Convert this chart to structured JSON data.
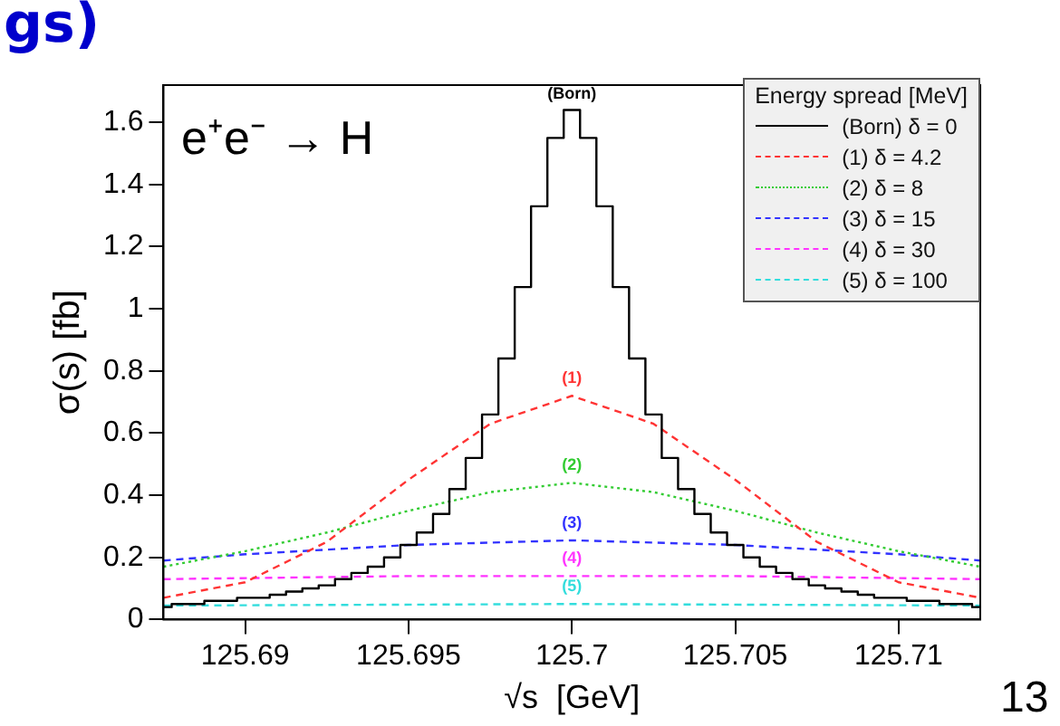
{
  "chart_data": {
    "type": "line",
    "xlabel": "√s  [GeV]",
    "ylabel": "σ(s) [fb]",
    "legend_title": "Energy spread [MeV]",
    "legend": "top right",
    "grid": false,
    "marker": "none",
    "xlim": [
      125.6875,
      125.7125
    ],
    "xticks": [
      125.69,
      125.695,
      125.7,
      125.705,
      125.71
    ],
    "ylim": [
      0,
      1.72
    ],
    "yticks": [
      0,
      0.2,
      0.4,
      0.6,
      0.8,
      1,
      1.2,
      1.4,
      1.6
    ],
    "series": [
      {
        "name": "(Born) δ = 0",
        "type": "step",
        "color": "#000000",
        "line_style": "solid",
        "x": [
          125.6875,
          125.688,
          125.6885,
          125.689,
          125.6895,
          125.69,
          125.6905,
          125.691,
          125.6915,
          125.692,
          125.6925,
          125.693,
          125.6935,
          125.694,
          125.6945,
          125.695,
          125.6955,
          125.696,
          125.6965,
          125.697,
          125.6975,
          125.698,
          125.6985,
          125.699,
          125.6995,
          125.7,
          125.7005,
          125.701,
          125.7015,
          125.702,
          125.7025,
          125.703,
          125.7035,
          125.704,
          125.7045,
          125.705,
          125.7055,
          125.706,
          125.7065,
          125.707,
          125.7075,
          125.708,
          125.7085,
          125.709,
          125.7095,
          125.71,
          125.7105,
          125.711,
          125.7115,
          125.712,
          125.7125
        ],
        "values": [
          0.04,
          0.05,
          0.05,
          0.06,
          0.06,
          0.07,
          0.07,
          0.08,
          0.09,
          0.1,
          0.11,
          0.13,
          0.15,
          0.17,
          0.2,
          0.24,
          0.28,
          0.34,
          0.42,
          0.52,
          0.66,
          0.84,
          1.07,
          1.33,
          1.55,
          1.64,
          1.55,
          1.33,
          1.07,
          0.84,
          0.66,
          0.52,
          0.42,
          0.34,
          0.28,
          0.24,
          0.2,
          0.17,
          0.15,
          0.13,
          0.11,
          0.1,
          0.09,
          0.08,
          0.07,
          0.07,
          0.06,
          0.06,
          0.05,
          0.05,
          0.04
        ]
      },
      {
        "name": "(1) δ = 4.2",
        "color": "#ff3333",
        "line_style": "dashed",
        "x": [
          125.6875,
          125.69,
          125.6925,
          125.695,
          125.6975,
          125.7,
          125.7025,
          125.705,
          125.7075,
          125.71,
          125.7125
        ],
        "values": [
          0.07,
          0.12,
          0.25,
          0.45,
          0.63,
          0.72,
          0.63,
          0.45,
          0.25,
          0.12,
          0.07
        ]
      },
      {
        "name": "(2) δ = 8",
        "color": "#33cc33",
        "line_style": "dotted",
        "x": [
          125.6875,
          125.69,
          125.6925,
          125.695,
          125.6975,
          125.7,
          125.7025,
          125.705,
          125.7075,
          125.71,
          125.7125
        ],
        "values": [
          0.17,
          0.22,
          0.28,
          0.35,
          0.41,
          0.44,
          0.41,
          0.35,
          0.28,
          0.22,
          0.17
        ]
      },
      {
        "name": "(3) δ = 15",
        "color": "#3333ff",
        "line_style": "dashed",
        "x": [
          125.6875,
          125.69,
          125.695,
          125.7,
          125.705,
          125.71,
          125.7125
        ],
        "values": [
          0.19,
          0.21,
          0.24,
          0.255,
          0.24,
          0.21,
          0.19
        ]
      },
      {
        "name": "(4) δ = 30",
        "color": "#ff33ff",
        "line_style": "dashed",
        "x": [
          125.6875,
          125.695,
          125.7,
          125.705,
          125.7125
        ],
        "values": [
          0.13,
          0.14,
          0.14,
          0.14,
          0.13
        ]
      },
      {
        "name": "(5) δ = 100",
        "color": "#33dddd",
        "line_style": "dashed",
        "x": [
          125.6875,
          125.7,
          125.7125
        ],
        "values": [
          0.045,
          0.05,
          0.045
        ]
      }
    ],
    "annotations": [
      "(Born)",
      "(1)",
      "(2)",
      "(3)",
      "(4)",
      "(5)",
      "gs)",
      "e⁺e⁻ → H",
      "13"
    ]
  }
}
